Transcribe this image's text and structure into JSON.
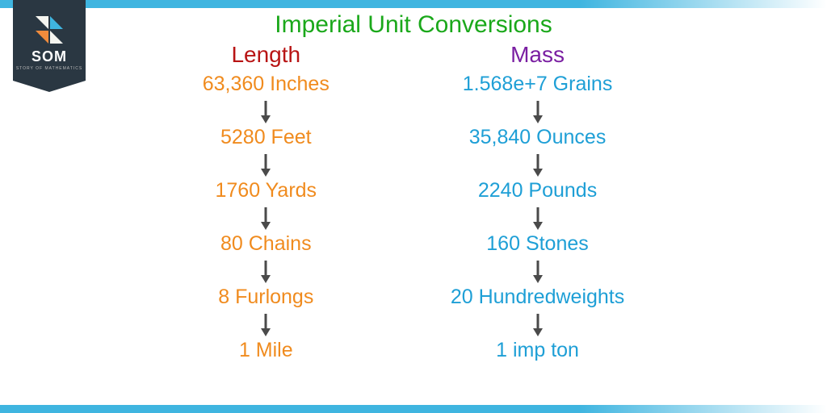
{
  "logo": {
    "text": "SOM",
    "subtitle": "STORY OF MATHEMATICS",
    "bg_color": "#2a3742",
    "tile_colors": [
      "#f5f5f0",
      "#3fb5e0",
      "#f08b3c",
      "#f5f5f0"
    ]
  },
  "title": {
    "text": "Imperial Unit Conversions",
    "color": "#1aa81a",
    "fontsize": 30
  },
  "bar_color": "#3fb5e0",
  "arrow_color": "#4a4a4a",
  "columns": [
    {
      "header": "Length",
      "header_color": "#b81414",
      "item_color": "#f08b1e",
      "items": [
        "63,360 Inches",
        "5280 Feet",
        "1760 Yards",
        "80 Chains",
        "8 Furlongs",
        "1 Mile"
      ]
    },
    {
      "header": "Mass",
      "header_color": "#7a1fa2",
      "item_color": "#1e9fd6",
      "items": [
        "1.568e+7 Grains",
        "35,840 Ounces",
        "2240 Pounds",
        "160 Stones",
        "20 Hundredweights",
        "1 imp ton"
      ]
    }
  ]
}
